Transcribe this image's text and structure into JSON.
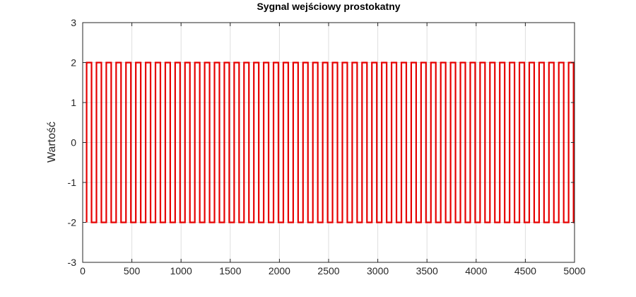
{
  "chart_data": {
    "type": "line",
    "title": "Sygnal wejściowy prostokatny",
    "xlabel": "",
    "ylabel": "Wartość",
    "xlim": [
      0,
      5000
    ],
    "ylim": [
      -3,
      3
    ],
    "xticks": [
      0,
      500,
      1000,
      1500,
      2000,
      2500,
      3000,
      3500,
      4000,
      4500,
      5000
    ],
    "yticks": [
      -3,
      -2,
      -1,
      0,
      1,
      2,
      3
    ],
    "grid": true,
    "series": [
      {
        "color": "#e60000",
        "signal": {
          "form": "square",
          "low": -2,
          "high": 2,
          "x_start": 40,
          "x_end": 5000,
          "period": 100,
          "duty_cycle": 0.5
        }
      }
    ]
  }
}
